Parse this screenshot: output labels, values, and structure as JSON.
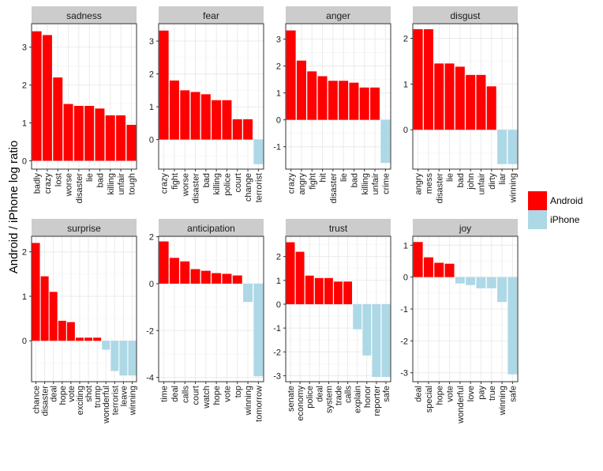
{
  "chart_data": {
    "type": "bar",
    "ylabel": "Android / iPhone log ratio",
    "legend": {
      "position": "right",
      "entries": [
        {
          "name": "Android",
          "color": "#ff0000"
        },
        {
          "name": "iPhone",
          "color": "#add8e6"
        }
      ]
    },
    "colors": {
      "positive": "#ff0000",
      "negative": "#add8e6",
      "strip": "#cccccc",
      "grid_major": "#ebebeb",
      "grid_minor": "#f5f5f5"
    },
    "panels": [
      {
        "title": "sadness",
        "ylim": [
          -0.22,
          3.62
        ],
        "yticks": [
          0,
          1,
          2,
          3
        ],
        "categories": [
          "badly",
          "crazy",
          "lost",
          "worse",
          "disaster",
          "lie",
          "bad",
          "killing",
          "unfair",
          "tough"
        ],
        "values": [
          3.42,
          3.32,
          2.2,
          1.5,
          1.45,
          1.45,
          1.38,
          1.2,
          1.2,
          0.95
        ]
      },
      {
        "title": "fear",
        "ylim": [
          -0.9,
          3.53
        ],
        "yticks": [
          0,
          1,
          2,
          3
        ],
        "categories": [
          "crazy",
          "fight",
          "worse",
          "disaster",
          "bad",
          "killing",
          "police",
          "court",
          "change",
          "terrorist"
        ],
        "values": [
          3.32,
          1.8,
          1.5,
          1.45,
          1.38,
          1.2,
          1.2,
          0.62,
          0.62,
          -0.75
        ]
      },
      {
        "title": "anger",
        "ylim": [
          -1.83,
          3.57
        ],
        "yticks": [
          -1,
          0,
          1,
          2,
          3
        ],
        "categories": [
          "crazy",
          "angry",
          "fight",
          "hit",
          "disaster",
          "lie",
          "bad",
          "killing",
          "unfair",
          "crime"
        ],
        "values": [
          3.32,
          2.2,
          1.8,
          1.62,
          1.45,
          1.45,
          1.38,
          1.2,
          1.2,
          -1.6
        ]
      },
      {
        "title": "disgust",
        "ylim": [
          -0.86,
          2.32
        ],
        "yticks": [
          0,
          1,
          2
        ],
        "categories": [
          "angry",
          "mess",
          "disaster",
          "lie",
          "bad",
          "john",
          "unfair",
          "dirty",
          "liar",
          "winning"
        ],
        "values": [
          2.2,
          2.2,
          1.45,
          1.45,
          1.38,
          1.2,
          1.2,
          0.95,
          -0.75,
          -0.75
        ]
      },
      {
        "title": "surprise",
        "ylim": [
          -0.92,
          2.35
        ],
        "yticks": [
          0,
          1,
          2
        ],
        "categories": [
          "chance",
          "disaster",
          "deal",
          "hope",
          "vote",
          "exciting",
          "shot",
          "trump",
          "wonderful",
          "terrorist",
          "leave",
          "winning"
        ],
        "values": [
          2.2,
          1.45,
          1.1,
          0.45,
          0.42,
          0.07,
          0.07,
          0.07,
          -0.2,
          -0.68,
          -0.78,
          -0.78
        ]
      },
      {
        "title": "anticipation",
        "ylim": [
          -4.18,
          2.02
        ],
        "yticks": [
          -4,
          -2,
          0,
          2
        ],
        "categories": [
          "time",
          "deal",
          "calls",
          "court",
          "watch",
          "hope",
          "vote",
          "top",
          "winning",
          "tomorrow"
        ],
        "values": [
          1.8,
          1.1,
          0.95,
          0.62,
          0.55,
          0.45,
          0.42,
          0.35,
          -0.78,
          -3.95
        ]
      },
      {
        "title": "trust",
        "ylim": [
          -3.25,
          2.85
        ],
        "yticks": [
          -3,
          -2,
          -1,
          0,
          1,
          2
        ],
        "categories": [
          "senate",
          "economy",
          "police",
          "deal",
          "system",
          "trade",
          "calls",
          "explain",
          "honor",
          "reporter",
          "safe"
        ],
        "values": [
          2.6,
          2.2,
          1.2,
          1.1,
          1.1,
          0.95,
          0.95,
          -1.05,
          -2.15,
          -3.05,
          -3.05
        ]
      },
      {
        "title": "joy",
        "ylim": [
          -3.28,
          1.28
        ],
        "yticks": [
          -3,
          -2,
          -1,
          0,
          1
        ],
        "categories": [
          "deal",
          "special",
          "hope",
          "vote",
          "wonderful",
          "love",
          "pay",
          "true",
          "winning",
          "safe"
        ],
        "values": [
          1.1,
          0.62,
          0.45,
          0.42,
          -0.2,
          -0.25,
          -0.35,
          -0.35,
          -0.78,
          -3.05
        ]
      }
    ]
  }
}
